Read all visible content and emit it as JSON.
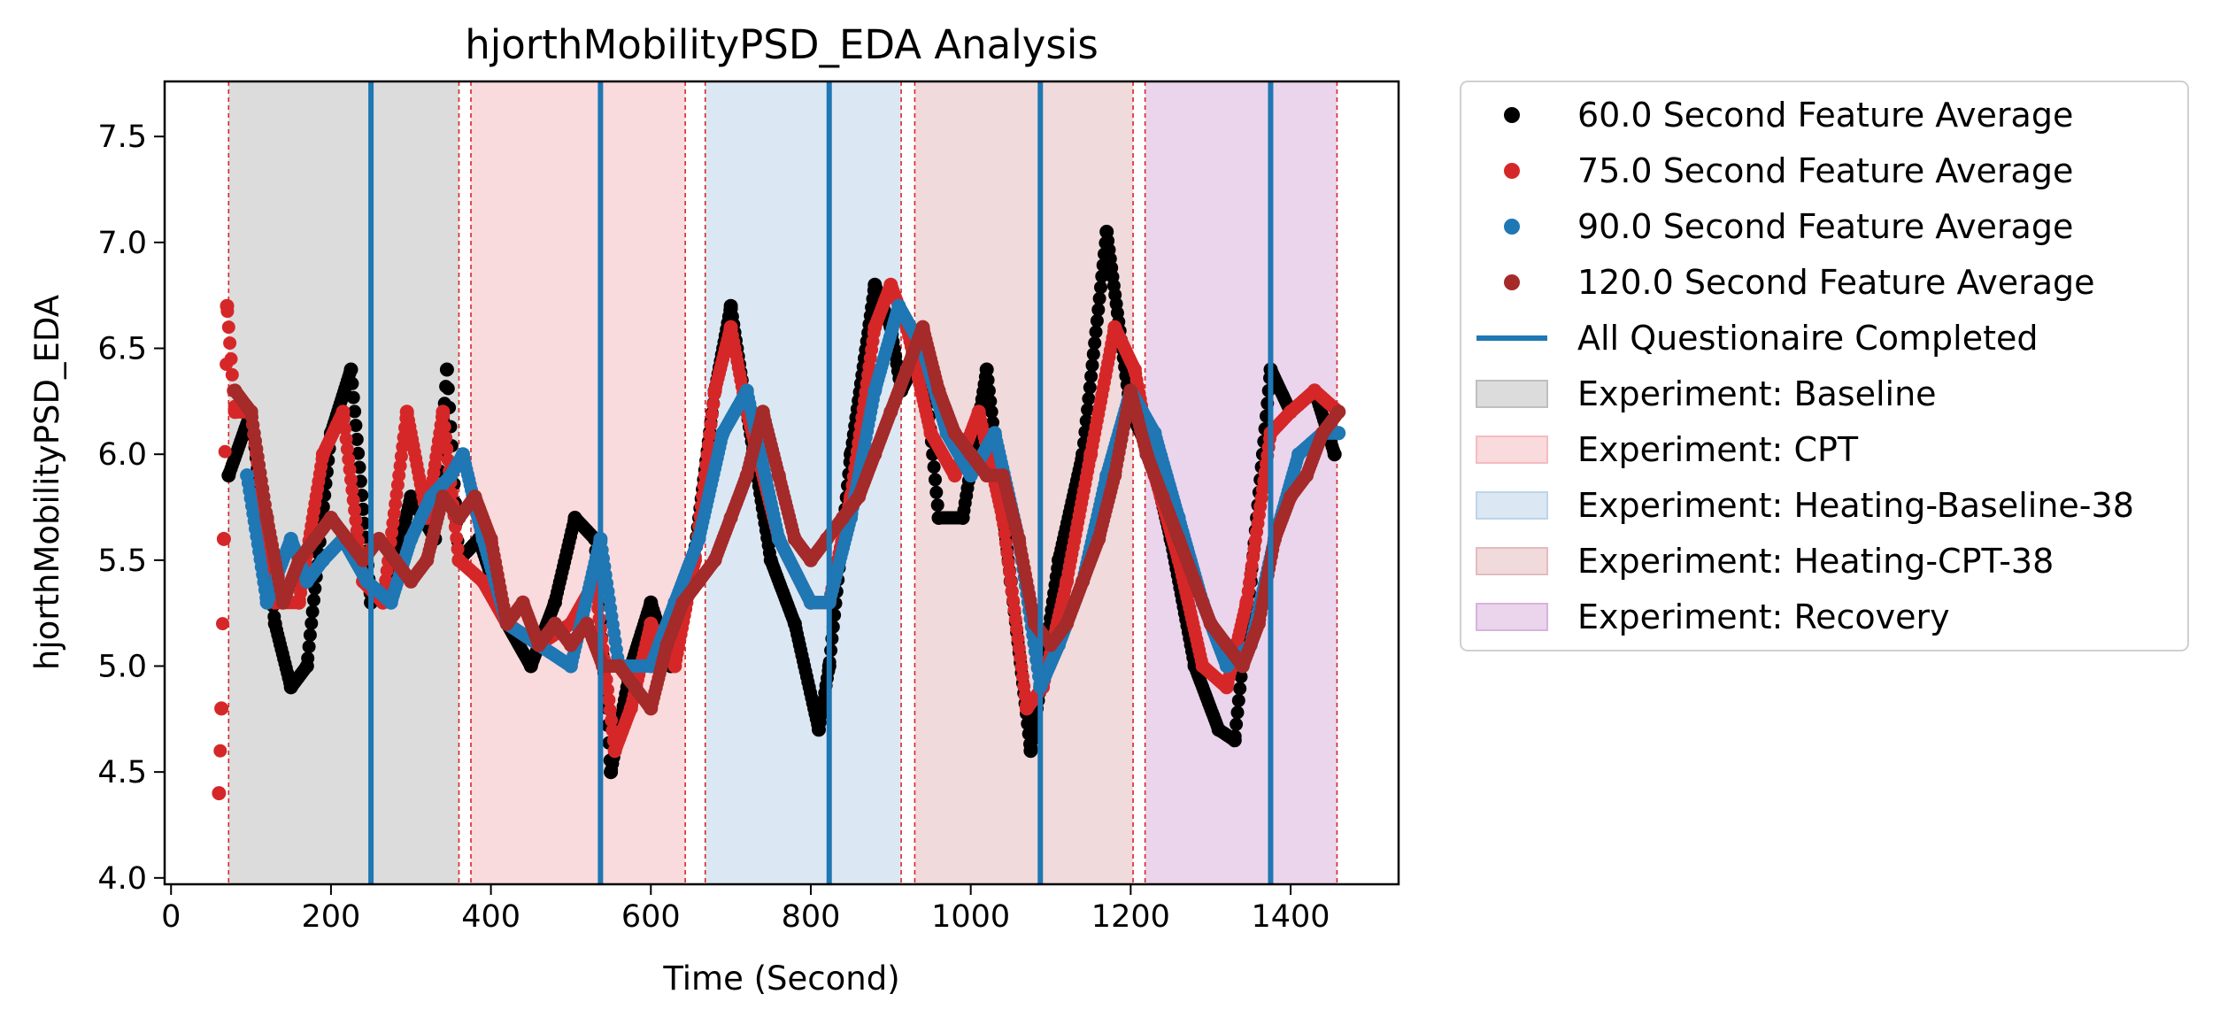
{
  "chart_data": {
    "type": "scatter",
    "title": "hjorthMobilityPSD_EDA Analysis",
    "xlabel": "Time (Second)",
    "ylabel": "hjorthMobilityPSD_EDA",
    "xlim": [
      -8,
      1535
    ],
    "ylim": [
      3.97,
      7.76
    ],
    "xticks": [
      0,
      200,
      400,
      600,
      800,
      1000,
      1200,
      1400
    ],
    "yticks": [
      4.0,
      4.5,
      5.0,
      5.5,
      6.0,
      6.5,
      7.0,
      7.5
    ],
    "grid": false,
    "legend_position": "outside-right",
    "regions": [
      {
        "name": "Experiment: Baseline",
        "start": 72,
        "end": 360,
        "color": "#bfbfbf"
      },
      {
        "name": "Experiment: CPT",
        "start": 375,
        "end": 643,
        "color": "#f4bcc1"
      },
      {
        "name": "Experiment: Heating-Baseline-38",
        "start": 668,
        "end": 913,
        "color": "#bdd5ea"
      },
      {
        "name": "Experiment: Heating-CPT-38",
        "start": 930,
        "end": 1203,
        "color": "#e4bcbd"
      },
      {
        "name": "Experiment: Recovery",
        "start": 1218,
        "end": 1458,
        "color": "#d8b3dc"
      }
    ],
    "boundary_lines": [
      72,
      360,
      375,
      643,
      668,
      913,
      930,
      1203,
      1218,
      1458
    ],
    "questionnaire_lines": [
      250,
      537,
      823,
      1087,
      1375
    ],
    "questionnaire_label": "All Questionaire Completed",
    "questionnaire_color": "#1f77b4",
    "series": [
      {
        "name": "60.0 Second Feature Average",
        "color": "#000000",
        "x": [
          72,
          100,
          130,
          150,
          170,
          200,
          225,
          250,
          275,
          300,
          330,
          345,
          360,
          385,
          420,
          450,
          480,
          505,
          530,
          550,
          575,
          600,
          625,
          650,
          680,
          700,
          720,
          750,
          780,
          810,
          823,
          850,
          880,
          900,
          913,
          940,
          960,
          990,
          1020,
          1050,
          1075,
          1087,
          1110,
          1140,
          1170,
          1200,
          1225,
          1250,
          1280,
          1310,
          1330,
          1350,
          1375,
          1400,
          1430,
          1455
        ],
        "y": [
          5.9,
          6.2,
          5.2,
          4.9,
          5.0,
          6.1,
          6.4,
          5.3,
          5.4,
          5.8,
          5.6,
          6.4,
          5.5,
          5.6,
          5.2,
          5.0,
          5.3,
          5.7,
          5.6,
          4.5,
          5.0,
          5.3,
          5.0,
          5.4,
          6.3,
          6.7,
          6.2,
          5.5,
          5.2,
          4.7,
          5.0,
          6.0,
          6.8,
          6.6,
          6.3,
          6.5,
          5.7,
          5.7,
          6.4,
          5.4,
          4.6,
          4.9,
          5.5,
          6.0,
          7.05,
          6.2,
          6.0,
          5.6,
          5.0,
          4.7,
          4.65,
          5.4,
          6.4,
          6.2,
          6.3,
          6.0
        ]
      },
      {
        "name": "75.0 Second Feature Average",
        "color": "#d62728",
        "x": [
          60,
          63,
          66,
          70,
          80,
          100,
          130,
          160,
          190,
          215,
          240,
          265,
          295,
          320,
          340,
          360,
          390,
          420,
          460,
          500,
          530,
          555,
          575,
          600,
          630,
          655,
          680,
          700,
          720,
          760,
          800,
          823,
          850,
          880,
          900,
          920,
          950,
          980,
          1010,
          1040,
          1070,
          1090,
          1120,
          1150,
          1180,
          1205,
          1230,
          1260,
          1290,
          1320,
          1345,
          1375,
          1400,
          1430,
          1460
        ],
        "y": [
          4.4,
          4.8,
          5.6,
          6.7,
          6.2,
          6.2,
          5.3,
          5.3,
          6.0,
          6.2,
          5.4,
          5.3,
          6.2,
          5.7,
          6.2,
          5.5,
          5.4,
          5.2,
          5.1,
          5.2,
          5.4,
          4.6,
          4.8,
          5.2,
          5.0,
          5.5,
          6.3,
          6.6,
          6.2,
          5.6,
          5.3,
          5.3,
          5.8,
          6.6,
          6.8,
          6.6,
          6.1,
          5.9,
          6.2,
          5.7,
          4.8,
          4.9,
          5.4,
          6.0,
          6.6,
          6.4,
          5.9,
          5.5,
          5.0,
          4.9,
          5.3,
          6.1,
          6.2,
          6.3,
          6.2
        ]
      },
      {
        "name": "90.0 Second Feature Average",
        "color": "#1f77b4",
        "x": [
          95,
          120,
          150,
          170,
          190,
          215,
          245,
          275,
          300,
          325,
          350,
          365,
          390,
          420,
          460,
          500,
          537,
          560,
          600,
          630,
          660,
          690,
          720,
          760,
          800,
          823,
          850,
          880,
          910,
          940,
          970,
          1000,
          1030,
          1060,
          1087,
          1110,
          1140,
          1170,
          1200,
          1230,
          1260,
          1290,
          1320,
          1350,
          1380,
          1410,
          1440,
          1460
        ],
        "y": [
          5.9,
          5.3,
          5.6,
          5.4,
          5.5,
          5.6,
          5.4,
          5.3,
          5.6,
          5.8,
          5.9,
          6.0,
          5.6,
          5.2,
          5.1,
          5.0,
          5.6,
          5.0,
          5.0,
          5.3,
          5.6,
          6.1,
          6.3,
          5.6,
          5.3,
          5.3,
          5.7,
          6.3,
          6.7,
          6.5,
          6.1,
          5.9,
          6.1,
          5.6,
          4.9,
          5.1,
          5.4,
          5.9,
          6.3,
          6.1,
          5.7,
          5.3,
          5.0,
          5.1,
          5.6,
          6.0,
          6.1,
          6.1
        ]
      },
      {
        "name": "120.0 Second Feature Average",
        "color": "#a52a2a",
        "x": [
          80,
          100,
          120,
          140,
          160,
          180,
          200,
          220,
          240,
          260,
          280,
          300,
          320,
          340,
          360,
          380,
          400,
          420,
          440,
          460,
          480,
          500,
          520,
          540,
          560,
          580,
          600,
          620,
          640,
          660,
          680,
          700,
          720,
          740,
          760,
          780,
          800,
          820,
          840,
          860,
          880,
          900,
          920,
          940,
          960,
          980,
          1000,
          1020,
          1040,
          1060,
          1080,
          1100,
          1120,
          1140,
          1160,
          1180,
          1200,
          1220,
          1240,
          1260,
          1280,
          1300,
          1320,
          1340,
          1360,
          1380,
          1400,
          1420,
          1440,
          1460
        ],
        "y": [
          6.3,
          6.2,
          5.7,
          5.3,
          5.5,
          5.6,
          5.7,
          5.6,
          5.5,
          5.6,
          5.5,
          5.4,
          5.5,
          5.8,
          5.7,
          5.8,
          5.6,
          5.2,
          5.3,
          5.1,
          5.2,
          5.1,
          5.2,
          5.0,
          5.0,
          4.9,
          4.8,
          5.1,
          5.3,
          5.4,
          5.5,
          5.7,
          5.9,
          6.2,
          5.9,
          5.6,
          5.5,
          5.6,
          5.7,
          5.8,
          6.0,
          6.2,
          6.4,
          6.6,
          6.3,
          6.1,
          6.0,
          5.9,
          5.9,
          5.6,
          5.2,
          5.1,
          5.2,
          5.4,
          5.6,
          5.9,
          6.3,
          6.0,
          5.8,
          5.6,
          5.4,
          5.2,
          5.1,
          5.0,
          5.2,
          5.6,
          5.8,
          5.9,
          6.1,
          6.2
        ]
      }
    ]
  }
}
